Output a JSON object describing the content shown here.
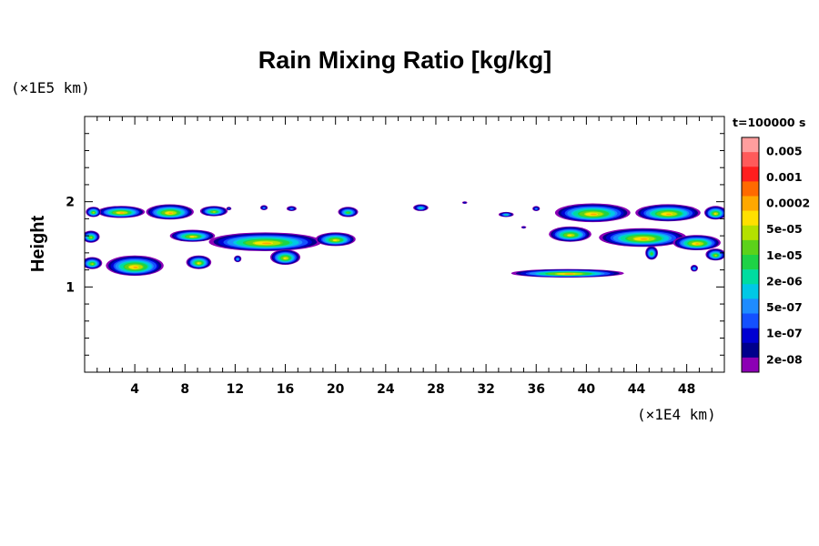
{
  "chart_data": {
    "type": "heatmap",
    "title": "Rain Mixing Ratio [kg/kg]",
    "xlabel": "",
    "ylabel": "Height",
    "x_unit": "(×1E4 km)",
    "y_unit": "(×1E5 km)",
    "time_label": "t=100000 s",
    "xlim": [
      0,
      51
    ],
    "ylim": [
      0,
      3
    ],
    "x_ticks": [
      4,
      8,
      12,
      16,
      20,
      24,
      28,
      32,
      36,
      40,
      44,
      48
    ],
    "x_tick_labels": [
      "4",
      "8",
      "12",
      "16",
      "20",
      "24",
      "28",
      "32",
      "36",
      "40",
      "44",
      "48"
    ],
    "y_ticks": [
      1,
      2
    ],
    "y_tick_labels": [
      "1",
      "2"
    ],
    "colorbar": {
      "labels": [
        "0.005",
        "0.001",
        "0.0002",
        "5e-05",
        "1e-05",
        "2e-06",
        "5e-07",
        "1e-07",
        "2e-08"
      ],
      "colors": [
        "#ff9e9e",
        "#ff5a5a",
        "#ff1e1e",
        "#ff6a00",
        "#ffa800",
        "#ffe000",
        "#b4e000",
        "#5cd21a",
        "#1ed246",
        "#00dca0",
        "#00c8e6",
        "#1e8cff",
        "#1450ff",
        "#0000d2",
        "#00008c",
        "#8c00b4"
      ]
    },
    "regions": [
      {
        "x": 2.9,
        "y": 1.88,
        "rx": 1.9,
        "ry": 0.07,
        "peak": 11
      },
      {
        "x": 6.8,
        "y": 1.88,
        "rx": 1.9,
        "ry": 0.09,
        "peak": 11
      },
      {
        "x": 0.7,
        "y": 1.88,
        "rx": 0.6,
        "ry": 0.06,
        "peak": 9
      },
      {
        "x": 10.3,
        "y": 1.89,
        "rx": 1.1,
        "ry": 0.06,
        "peak": 9
      },
      {
        "x": 14.3,
        "y": 1.93,
        "rx": 0.3,
        "ry": 0.03,
        "peak": 4
      },
      {
        "x": 16.5,
        "y": 1.92,
        "rx": 0.4,
        "ry": 0.03,
        "peak": 4
      },
      {
        "x": 21.0,
        "y": 1.88,
        "rx": 0.8,
        "ry": 0.06,
        "peak": 8
      },
      {
        "x": 26.8,
        "y": 1.93,
        "rx": 0.6,
        "ry": 0.04,
        "peak": 6
      },
      {
        "x": 30.3,
        "y": 1.99,
        "rx": 0.2,
        "ry": 0.015,
        "peak": 2
      },
      {
        "x": 33.6,
        "y": 1.85,
        "rx": 0.6,
        "ry": 0.03,
        "peak": 6
      },
      {
        "x": 36.0,
        "y": 1.92,
        "rx": 0.3,
        "ry": 0.03,
        "peak": 4
      },
      {
        "x": 40.5,
        "y": 1.87,
        "rx": 3.0,
        "ry": 0.11,
        "peak": 11
      },
      {
        "x": 46.5,
        "y": 1.87,
        "rx": 2.6,
        "ry": 0.1,
        "peak": 11
      },
      {
        "x": 50.3,
        "y": 1.87,
        "rx": 0.9,
        "ry": 0.08,
        "peak": 10
      },
      {
        "x": 0.5,
        "y": 1.59,
        "rx": 0.7,
        "ry": 0.07,
        "peak": 9
      },
      {
        "x": 8.6,
        "y": 1.6,
        "rx": 1.8,
        "ry": 0.07,
        "peak": 10
      },
      {
        "x": 14.4,
        "y": 1.53,
        "rx": 4.5,
        "ry": 0.11,
        "peak": 11
      },
      {
        "x": 20.0,
        "y": 1.56,
        "rx": 1.6,
        "ry": 0.08,
        "peak": 10
      },
      {
        "x": 16.0,
        "y": 1.35,
        "rx": 1.2,
        "ry": 0.09,
        "peak": 10
      },
      {
        "x": 38.7,
        "y": 1.62,
        "rx": 1.7,
        "ry": 0.09,
        "peak": 10
      },
      {
        "x": 44.5,
        "y": 1.58,
        "rx": 3.5,
        "ry": 0.11,
        "peak": 11
      },
      {
        "x": 48.8,
        "y": 1.52,
        "rx": 1.9,
        "ry": 0.09,
        "peak": 11
      },
      {
        "x": 50.3,
        "y": 1.38,
        "rx": 0.8,
        "ry": 0.07,
        "peak": 9
      },
      {
        "x": 0.6,
        "y": 1.28,
        "rx": 0.8,
        "ry": 0.07,
        "peak": 9
      },
      {
        "x": 4.0,
        "y": 1.25,
        "rx": 2.3,
        "ry": 0.12,
        "peak": 11
      },
      {
        "x": 9.1,
        "y": 1.29,
        "rx": 1.0,
        "ry": 0.08,
        "peak": 10
      },
      {
        "x": 12.2,
        "y": 1.33,
        "rx": 0.3,
        "ry": 0.04,
        "peak": 5
      },
      {
        "x": 38.5,
        "y": 1.16,
        "rx": 4.5,
        "ry": 0.05,
        "peak": 11
      },
      {
        "x": 48.6,
        "y": 1.22,
        "rx": 0.3,
        "ry": 0.04,
        "peak": 5
      },
      {
        "x": 35.0,
        "y": 1.7,
        "rx": 0.2,
        "ry": 0.015,
        "peak": 2
      },
      {
        "x": 45.2,
        "y": 1.4,
        "rx": 0.5,
        "ry": 0.08,
        "peak": 8
      },
      {
        "x": 11.5,
        "y": 1.92,
        "rx": 0.2,
        "ry": 0.02,
        "peak": 3
      }
    ]
  }
}
